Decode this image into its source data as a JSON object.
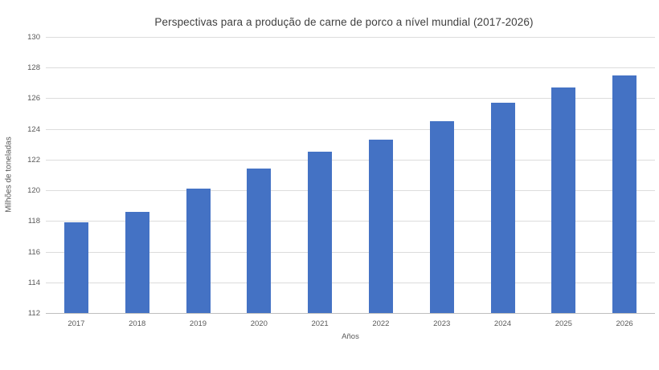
{
  "chart_data": {
    "type": "bar",
    "title": "Perspectivas para a produção de carne de porco a nível mundial (2017-2026)",
    "xlabel": "Años",
    "ylabel": "Milhões de toneladas",
    "categories": [
      "2017",
      "2018",
      "2019",
      "2020",
      "2021",
      "2022",
      "2023",
      "2024",
      "2025",
      "2026"
    ],
    "values": [
      117.9,
      118.6,
      120.1,
      121.4,
      122.5,
      123.3,
      124.5,
      125.7,
      126.7,
      127.5
    ],
    "ylim": [
      112,
      130
    ],
    "yticks": [
      112,
      114,
      116,
      118,
      120,
      122,
      124,
      126,
      128,
      130
    ],
    "grid": true,
    "legend": false,
    "colors": {
      "bar": "#4472C4",
      "gridline": "#dcdcdc",
      "axis_line": "#bfbfbf",
      "tick_label": "#595959",
      "title": "#3f3f3f"
    }
  }
}
